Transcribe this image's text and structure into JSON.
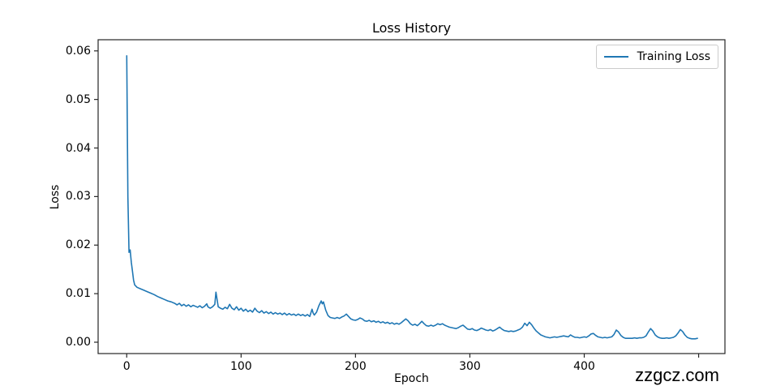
{
  "watermark": "zzgcz.com",
  "colors": {
    "background": "#ffffff",
    "line": "#1f77b4",
    "spine": "#262626",
    "text": "#000000",
    "legend_border": "#cccccc"
  },
  "chart_data": {
    "type": "line",
    "title": "Loss History",
    "xlabel": "Epoch",
    "ylabel": "Loss",
    "grid": false,
    "legend": {
      "entries": [
        "Training Loss"
      ],
      "position": "upper right"
    },
    "xlim": [
      -25,
      523
    ],
    "ylim": [
      -0.00234,
      0.0623
    ],
    "xticks": {
      "values": [
        0,
        100,
        200,
        300,
        400,
        500
      ],
      "labels": [
        "0",
        "100",
        "200",
        "300",
        "400",
        ""
      ]
    },
    "yticks": {
      "values": [
        0.0,
        0.01,
        0.02,
        0.03,
        0.04,
        0.05,
        0.06
      ],
      "labels": [
        "0.00",
        "0.01",
        "0.02",
        "0.03",
        "0.04",
        "0.05",
        "0.06"
      ]
    },
    "series": [
      {
        "name": "Training Loss",
        "color": "#1f77b4",
        "points": [
          [
            0,
            0.059
          ],
          [
            1,
            0.03
          ],
          [
            2,
            0.0185
          ],
          [
            3,
            0.019
          ],
          [
            4,
            0.0165
          ],
          [
            5,
            0.0147
          ],
          [
            6,
            0.0128
          ],
          [
            7,
            0.0118
          ],
          [
            9,
            0.0113
          ],
          [
            12,
            0.011
          ],
          [
            15,
            0.0107
          ],
          [
            18,
            0.0104
          ],
          [
            21,
            0.0101
          ],
          [
            24,
            0.0098
          ],
          [
            27,
            0.0094
          ],
          [
            30,
            0.0091
          ],
          [
            33,
            0.0088
          ],
          [
            36,
            0.0085
          ],
          [
            39,
            0.0083
          ],
          [
            42,
            0.008
          ],
          [
            44,
            0.0077
          ],
          [
            46,
            0.008
          ],
          [
            48,
            0.0075
          ],
          [
            50,
            0.0078
          ],
          [
            52,
            0.0074
          ],
          [
            54,
            0.0077
          ],
          [
            56,
            0.0073
          ],
          [
            58,
            0.0076
          ],
          [
            60,
            0.0074
          ],
          [
            62,
            0.0072
          ],
          [
            64,
            0.0075
          ],
          [
            66,
            0.0071
          ],
          [
            68,
            0.0074
          ],
          [
            70,
            0.0079
          ],
          [
            71,
            0.0073
          ],
          [
            73,
            0.007
          ],
          [
            75,
            0.0073
          ],
          [
            77,
            0.0078
          ],
          [
            78,
            0.0103
          ],
          [
            79,
            0.0088
          ],
          [
            80,
            0.0073
          ],
          [
            82,
            0.007
          ],
          [
            84,
            0.0068
          ],
          [
            86,
            0.0072
          ],
          [
            88,
            0.0069
          ],
          [
            90,
            0.0078
          ],
          [
            92,
            0.007
          ],
          [
            94,
            0.0067
          ],
          [
            96,
            0.0073
          ],
          [
            98,
            0.0066
          ],
          [
            100,
            0.007
          ],
          [
            102,
            0.0064
          ],
          [
            104,
            0.0068
          ],
          [
            106,
            0.0063
          ],
          [
            108,
            0.0066
          ],
          [
            110,
            0.0062
          ],
          [
            112,
            0.007
          ],
          [
            114,
            0.0064
          ],
          [
            116,
            0.0061
          ],
          [
            118,
            0.0065
          ],
          [
            120,
            0.006
          ],
          [
            122,
            0.0063
          ],
          [
            124,
            0.0059
          ],
          [
            126,
            0.0062
          ],
          [
            128,
            0.0058
          ],
          [
            130,
            0.0061
          ],
          [
            132,
            0.0058
          ],
          [
            134,
            0.006
          ],
          [
            136,
            0.0057
          ],
          [
            138,
            0.006
          ],
          [
            140,
            0.0056
          ],
          [
            142,
            0.0059
          ],
          [
            144,
            0.0056
          ],
          [
            146,
            0.0058
          ],
          [
            148,
            0.0055
          ],
          [
            150,
            0.0058
          ],
          [
            152,
            0.0055
          ],
          [
            154,
            0.0057
          ],
          [
            156,
            0.0054
          ],
          [
            158,
            0.0057
          ],
          [
            160,
            0.0053
          ],
          [
            162,
            0.0068
          ],
          [
            163,
            0.006
          ],
          [
            164,
            0.0056
          ],
          [
            166,
            0.0062
          ],
          [
            168,
            0.0075
          ],
          [
            170,
            0.0085
          ],
          [
            171,
            0.0079
          ],
          [
            172,
            0.0083
          ],
          [
            174,
            0.0066
          ],
          [
            176,
            0.0055
          ],
          [
            178,
            0.0051
          ],
          [
            180,
            0.005
          ],
          [
            182,
            0.0049
          ],
          [
            184,
            0.0051
          ],
          [
            186,
            0.0049
          ],
          [
            188,
            0.0052
          ],
          [
            190,
            0.0054
          ],
          [
            192,
            0.0058
          ],
          [
            194,
            0.0053
          ],
          [
            196,
            0.0048
          ],
          [
            198,
            0.0046
          ],
          [
            200,
            0.0045
          ],
          [
            202,
            0.0047
          ],
          [
            204,
            0.005
          ],
          [
            206,
            0.0048
          ],
          [
            208,
            0.0044
          ],
          [
            210,
            0.0043
          ],
          [
            212,
            0.0045
          ],
          [
            214,
            0.0042
          ],
          [
            216,
            0.0044
          ],
          [
            218,
            0.0041
          ],
          [
            220,
            0.0043
          ],
          [
            222,
            0.004
          ],
          [
            224,
            0.0042
          ],
          [
            226,
            0.0039
          ],
          [
            228,
            0.0041
          ],
          [
            230,
            0.0038
          ],
          [
            232,
            0.004
          ],
          [
            234,
            0.0037
          ],
          [
            236,
            0.0039
          ],
          [
            238,
            0.0037
          ],
          [
            240,
            0.004
          ],
          [
            242,
            0.0044
          ],
          [
            244,
            0.0048
          ],
          [
            246,
            0.0044
          ],
          [
            248,
            0.0038
          ],
          [
            250,
            0.0035
          ],
          [
            252,
            0.0037
          ],
          [
            254,
            0.0034
          ],
          [
            256,
            0.0038
          ],
          [
            258,
            0.0043
          ],
          [
            260,
            0.0038
          ],
          [
            262,
            0.0034
          ],
          [
            264,
            0.0033
          ],
          [
            266,
            0.0035
          ],
          [
            268,
            0.0033
          ],
          [
            270,
            0.0035
          ],
          [
            272,
            0.0038
          ],
          [
            274,
            0.0036
          ],
          [
            276,
            0.0038
          ],
          [
            278,
            0.0035
          ],
          [
            280,
            0.0033
          ],
          [
            282,
            0.0031
          ],
          [
            284,
            0.003
          ],
          [
            286,
            0.0029
          ],
          [
            288,
            0.0028
          ],
          [
            290,
            0.003
          ],
          [
            292,
            0.0033
          ],
          [
            294,
            0.0035
          ],
          [
            296,
            0.0031
          ],
          [
            298,
            0.0027
          ],
          [
            300,
            0.0026
          ],
          [
            302,
            0.0028
          ],
          [
            304,
            0.0025
          ],
          [
            306,
            0.0024
          ],
          [
            308,
            0.0026
          ],
          [
            310,
            0.0029
          ],
          [
            312,
            0.0027
          ],
          [
            314,
            0.0025
          ],
          [
            316,
            0.0024
          ],
          [
            318,
            0.0026
          ],
          [
            320,
            0.0023
          ],
          [
            322,
            0.0025
          ],
          [
            324,
            0.0028
          ],
          [
            326,
            0.0031
          ],
          [
            328,
            0.0027
          ],
          [
            330,
            0.0024
          ],
          [
            332,
            0.0023
          ],
          [
            334,
            0.0022
          ],
          [
            336,
            0.0023
          ],
          [
            338,
            0.0022
          ],
          [
            340,
            0.0023
          ],
          [
            342,
            0.0025
          ],
          [
            344,
            0.0027
          ],
          [
            346,
            0.0031
          ],
          [
            348,
            0.0039
          ],
          [
            350,
            0.0034
          ],
          [
            352,
            0.0041
          ],
          [
            354,
            0.0036
          ],
          [
            356,
            0.0029
          ],
          [
            358,
            0.0023
          ],
          [
            360,
            0.0019
          ],
          [
            362,
            0.0015
          ],
          [
            364,
            0.0013
          ],
          [
            366,
            0.0011
          ],
          [
            368,
            0.001
          ],
          [
            370,
            0.0009
          ],
          [
            372,
            0.001
          ],
          [
            374,
            0.0011
          ],
          [
            376,
            0.001
          ],
          [
            378,
            0.0011
          ],
          [
            380,
            0.0012
          ],
          [
            382,
            0.0013
          ],
          [
            384,
            0.0012
          ],
          [
            386,
            0.0011
          ],
          [
            388,
            0.0015
          ],
          [
            390,
            0.0012
          ],
          [
            392,
            0.001
          ],
          [
            394,
            0.001
          ],
          [
            396,
            0.0009
          ],
          [
            398,
            0.001
          ],
          [
            400,
            0.0011
          ],
          [
            402,
            0.001
          ],
          [
            404,
            0.0013
          ],
          [
            406,
            0.0017
          ],
          [
            408,
            0.0018
          ],
          [
            410,
            0.0014
          ],
          [
            412,
            0.0011
          ],
          [
            414,
            0.001
          ],
          [
            416,
            0.0009
          ],
          [
            418,
            0.001
          ],
          [
            420,
            0.0009
          ],
          [
            422,
            0.001
          ],
          [
            424,
            0.0011
          ],
          [
            426,
            0.0016
          ],
          [
            428,
            0.0025
          ],
          [
            430,
            0.0021
          ],
          [
            432,
            0.0014
          ],
          [
            434,
            0.001
          ],
          [
            436,
            0.0008
          ],
          [
            438,
            0.0008
          ],
          [
            440,
            0.0008
          ],
          [
            442,
            0.0008
          ],
          [
            444,
            0.0009
          ],
          [
            446,
            0.0008
          ],
          [
            448,
            0.0009
          ],
          [
            450,
            0.0009
          ],
          [
            452,
            0.001
          ],
          [
            454,
            0.0013
          ],
          [
            456,
            0.0021
          ],
          [
            458,
            0.0028
          ],
          [
            460,
            0.0023
          ],
          [
            462,
            0.0015
          ],
          [
            464,
            0.0011
          ],
          [
            466,
            0.0009
          ],
          [
            468,
            0.0008
          ],
          [
            470,
            0.0008
          ],
          [
            472,
            0.0009
          ],
          [
            474,
            0.0008
          ],
          [
            476,
            0.0009
          ],
          [
            478,
            0.001
          ],
          [
            480,
            0.0013
          ],
          [
            482,
            0.0019
          ],
          [
            484,
            0.0026
          ],
          [
            486,
            0.0022
          ],
          [
            488,
            0.0015
          ],
          [
            490,
            0.001
          ],
          [
            492,
            0.0008
          ],
          [
            494,
            0.0007
          ],
          [
            497,
            0.0007
          ],
          [
            499,
            0.0008
          ]
        ]
      }
    ]
  }
}
